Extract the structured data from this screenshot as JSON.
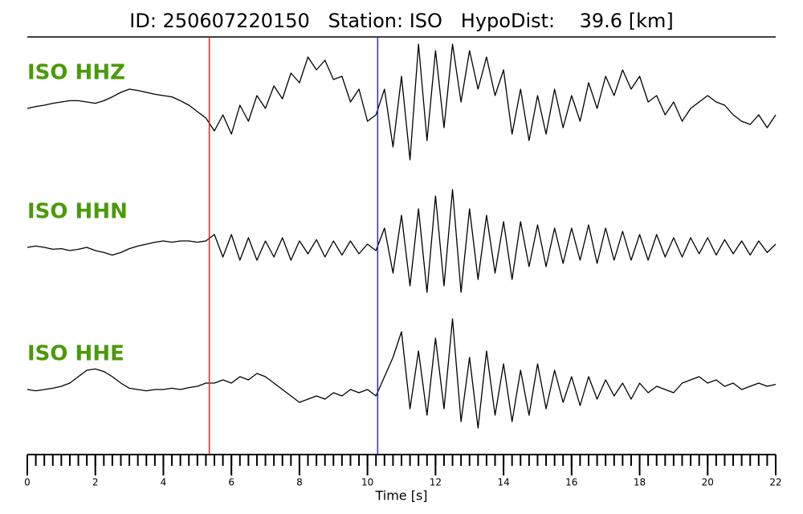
{
  "chart_data": {
    "type": "line",
    "title": "ID: 250607220150   Station: ISO   HypoDist:    39.6 [km]",
    "xlabel": "Time [s]",
    "xlim": [
      0,
      22
    ],
    "xticks": [
      0,
      2,
      4,
      6,
      8,
      10,
      12,
      14,
      16,
      18,
      20,
      22
    ],
    "xminor_step": 0.25,
    "ylim": [
      -1.1,
      1.1
    ],
    "markers": [
      {
        "x": 5.35,
        "color": "#e0201b"
      },
      {
        "x": 10.3,
        "color": "#2a2ad0"
      }
    ],
    "x": [
      0,
      0.25,
      0.5,
      0.75,
      1,
      1.25,
      1.5,
      1.75,
      2,
      2.25,
      2.5,
      2.75,
      3,
      3.25,
      3.5,
      3.75,
      4,
      4.25,
      4.5,
      4.75,
      5,
      5.25,
      5.5,
      5.75,
      6,
      6.25,
      6.5,
      6.75,
      7,
      7.25,
      7.5,
      7.75,
      8,
      8.25,
      8.5,
      8.75,
      9,
      9.25,
      9.5,
      9.75,
      10,
      10.25,
      10.5,
      10.75,
      11,
      11.25,
      11.5,
      11.75,
      12,
      12.25,
      12.5,
      12.75,
      13,
      13.25,
      13.5,
      13.75,
      14,
      14.25,
      14.5,
      14.75,
      15,
      15.25,
      15.5,
      15.75,
      16,
      16.25,
      16.5,
      16.75,
      17,
      17.25,
      17.5,
      17.75,
      18,
      18.25,
      18.5,
      18.75,
      19,
      19.25,
      19.5,
      19.75,
      20,
      20.25,
      20.5,
      20.75,
      21,
      21.25,
      21.5,
      21.75,
      22
    ],
    "series": [
      {
        "name": "ISO HHZ",
        "color": "#000000",
        "label_color": "#4a9a0a",
        "values": [
          0,
          0.03,
          0.05,
          0.08,
          0.1,
          0.12,
          0.12,
          0.1,
          0.08,
          0.12,
          0.18,
          0.25,
          0.3,
          0.28,
          0.25,
          0.22,
          0.2,
          0.18,
          0.12,
          0.05,
          -0.05,
          -0.15,
          -0.35,
          -0.1,
          -0.4,
          0.05,
          -0.2,
          0.2,
          0.0,
          0.35,
          0.15,
          0.55,
          0.4,
          0.8,
          0.6,
          0.75,
          0.45,
          0.5,
          0.1,
          0.3,
          -0.2,
          -0.1,
          0.3,
          -0.6,
          0.5,
          -0.8,
          1.0,
          -0.5,
          0.9,
          -0.3,
          1.0,
          0.1,
          0.9,
          0.3,
          0.8,
          0.2,
          0.6,
          -0.4,
          0.3,
          -0.5,
          0.2,
          -0.4,
          0.3,
          -0.3,
          0.2,
          -0.2,
          0.4,
          0.0,
          0.5,
          0.2,
          0.6,
          0.3,
          0.5,
          0.1,
          0.2,
          -0.1,
          0.1,
          -0.2,
          0.0,
          0.1,
          0.2,
          0.1,
          0.05,
          -0.1,
          -0.2,
          -0.25,
          -0.1,
          -0.3,
          -0.1
        ]
      },
      {
        "name": "ISO HHN",
        "color": "#000000",
        "label_color": "#4a9a0a",
        "values": [
          0,
          0.02,
          0,
          -0.03,
          -0.02,
          -0.05,
          -0.03,
          0.0,
          -0.05,
          -0.08,
          -0.12,
          -0.08,
          -0.02,
          0.02,
          0.05,
          0.08,
          0.1,
          0.08,
          0.1,
          0.1,
          0.08,
          0.1,
          0.2,
          -0.15,
          0.2,
          -0.2,
          0.15,
          -0.2,
          0.1,
          -0.15,
          0.15,
          -0.2,
          0.1,
          -0.1,
          0.12,
          -0.15,
          0.1,
          -0.12,
          0.1,
          -0.1,
          0.05,
          -0.05,
          0.3,
          -0.4,
          0.5,
          -0.6,
          0.6,
          -0.7,
          0.8,
          -0.6,
          0.9,
          -0.7,
          0.6,
          -0.5,
          0.5,
          -0.4,
          0.4,
          -0.5,
          0.4,
          -0.3,
          0.35,
          -0.3,
          0.3,
          -0.25,
          0.3,
          -0.2,
          0.35,
          -0.25,
          0.3,
          -0.2,
          0.25,
          -0.2,
          0.2,
          -0.2,
          0.2,
          -0.15,
          0.15,
          -0.15,
          0.15,
          -0.1,
          0.15,
          -0.12,
          0.12,
          -0.1,
          0.1,
          -0.12,
          0.1,
          -0.08,
          0.05
        ]
      },
      {
        "name": "ISO HHE",
        "color": "#000000",
        "label_color": "#4a9a0a",
        "values": [
          0,
          -0.02,
          0,
          0.02,
          0.05,
          0.1,
          0.2,
          0.3,
          0.32,
          0.28,
          0.2,
          0.1,
          0.02,
          0,
          -0.02,
          0,
          0,
          0.02,
          0,
          0.03,
          0.05,
          0.1,
          0.1,
          0.15,
          0.1,
          0.2,
          0.15,
          0.25,
          0.2,
          0.1,
          0.0,
          -0.1,
          -0.2,
          -0.15,
          -0.1,
          -0.15,
          -0.05,
          -0.1,
          0,
          -0.05,
          0,
          -0.1,
          0.2,
          0.5,
          0.9,
          -0.3,
          0.6,
          -0.4,
          0.8,
          -0.3,
          1.1,
          -0.5,
          0.5,
          -0.6,
          0.6,
          -0.4,
          0.4,
          -0.5,
          0.3,
          -0.4,
          0.4,
          -0.3,
          0.3,
          -0.2,
          0.2,
          -0.25,
          0.2,
          -0.15,
          0.15,
          -0.1,
          0.1,
          -0.15,
          0.1,
          -0.05,
          0.05,
          0.0,
          -0.05,
          0.1,
          0.15,
          0.2,
          0.1,
          0.15,
          0.05,
          0.1,
          0.0,
          0.05,
          0.1,
          0.05,
          0.08
        ]
      }
    ]
  }
}
